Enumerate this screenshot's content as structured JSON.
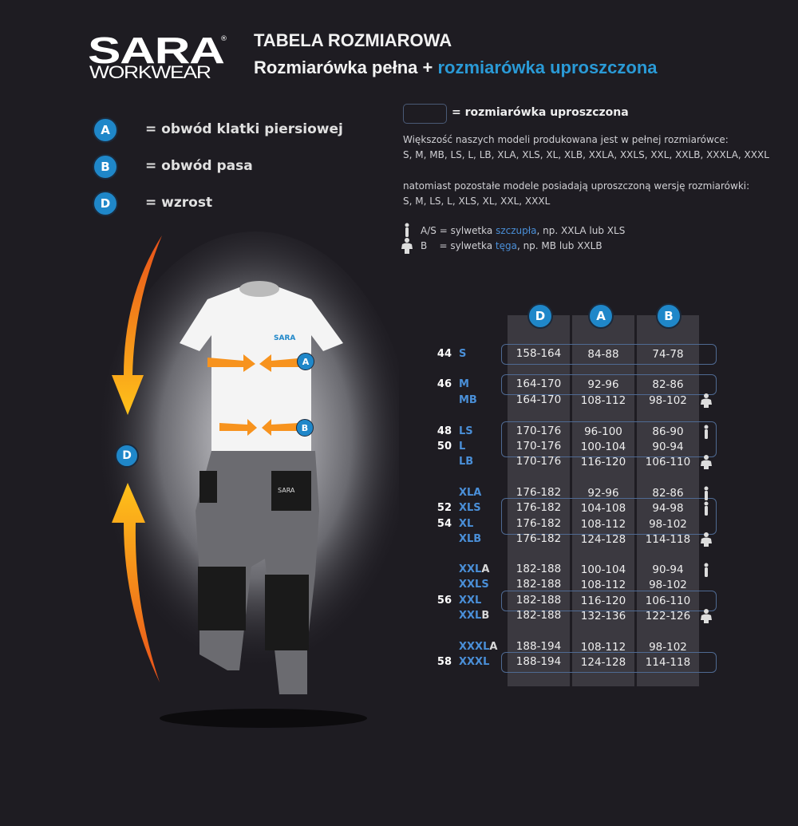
{
  "brand": {
    "logo_line1": "SARA",
    "logo_line2": "WORKWEAR",
    "registered": "®"
  },
  "header": {
    "title": "TABELA ROZMIAROWA",
    "subtitle_part1": "Rozmiarówka pełna + ",
    "subtitle_part2": "rozmiarówka uproszczona"
  },
  "legend": [
    {
      "badge": "A",
      "label": "= obwód klatki piersiowej"
    },
    {
      "badge": "B",
      "label": "= obwód pasa"
    },
    {
      "badge": "D",
      "label": "= wzrost"
    }
  ],
  "info": {
    "simplified_label": "= rozmiarówka uproszczona",
    "full_intro": "Większość naszych modeli produkowana jest w pełnej rozmiarówce:",
    "full_list": "S, M, MB, LS, L, LB, XLA, XLS, XL, XLB, XXLA, XXLS, XXL, XXLB, XXXLA, XXXL",
    "simple_intro": "natomiast pozostałe modele posiadają uproszczoną wersję rozmiarówki:",
    "simple_list": "S, M, LS, L, XLS, XL, XXL, XXXL",
    "slim_code": "A/S",
    "slim_pre": "= sylwetka ",
    "slim_word": "szczupła",
    "slim_post": ", np. XXLA lub XLS",
    "heavy_code": "B",
    "heavy_pre": "= sylwetka ",
    "heavy_word": "tęga",
    "heavy_post": ", np. MB lub XXLB"
  },
  "figure": {
    "badges": [
      "A",
      "B",
      "D"
    ],
    "shirt_logo": "SARA",
    "pants_logo": "SARA"
  },
  "table": {
    "columns": [
      "D",
      "A",
      "B"
    ],
    "rows": [
      {
        "eu": "44",
        "size": "S",
        "suffix": "",
        "D": "158-164",
        "A": "84-88",
        "B": "74-78",
        "build": "",
        "simplified": true
      },
      {
        "eu": "46",
        "size": "M",
        "suffix": "",
        "D": "164-170",
        "A": "92-96",
        "B": "82-86",
        "build": "",
        "simplified": true
      },
      {
        "eu": "",
        "size": "MB",
        "suffix": "",
        "D": "164-170",
        "A": "108-112",
        "B": "98-102",
        "build": "heavy",
        "simplified": false
      },
      {
        "eu": "48",
        "size": "LS",
        "suffix": "",
        "D": "170-176",
        "A": "96-100",
        "B": "86-90",
        "build": "slim",
        "simplified": true
      },
      {
        "eu": "50",
        "size": "L",
        "suffix": "",
        "D": "170-176",
        "A": "100-104",
        "B": "90-94",
        "build": "",
        "simplified": true
      },
      {
        "eu": "",
        "size": "LB",
        "suffix": "",
        "D": "170-176",
        "A": "116-120",
        "B": "106-110",
        "build": "heavy",
        "simplified": false
      },
      {
        "eu": "",
        "size": "XLA",
        "suffix": "",
        "D": "176-182",
        "A": "92-96",
        "B": "82-86",
        "build": "slim",
        "simplified": false
      },
      {
        "eu": "52",
        "size": "XLS",
        "suffix": "",
        "D": "176-182",
        "A": "104-108",
        "B": "94-98",
        "build": "slim",
        "simplified": true
      },
      {
        "eu": "54",
        "size": "XL",
        "suffix": "",
        "D": "176-182",
        "A": "108-112",
        "B": "98-102",
        "build": "",
        "simplified": true
      },
      {
        "eu": "",
        "size": "XLB",
        "suffix": "",
        "D": "176-182",
        "A": "124-128",
        "B": "114-118",
        "build": "heavy",
        "simplified": false
      },
      {
        "eu": "",
        "size": "XXL",
        "suffix": "A",
        "D": "182-188",
        "A": "100-104",
        "B": "90-94",
        "build": "slim",
        "simplified": false
      },
      {
        "eu": "",
        "size": "XXLS",
        "suffix": "",
        "D": "182-188",
        "A": "108-112",
        "B": "98-102",
        "build": "",
        "simplified": false
      },
      {
        "eu": "56",
        "size": "XXL",
        "suffix": "",
        "D": "182-188",
        "A": "116-120",
        "B": "106-110",
        "build": "",
        "simplified": true
      },
      {
        "eu": "",
        "size": "XXL",
        "suffix": "B",
        "D": "182-188",
        "A": "132-136",
        "B": "122-126",
        "build": "heavy",
        "simplified": false
      },
      {
        "eu": "",
        "size": "XXXL",
        "suffix": "A",
        "D": "188-194",
        "A": "108-112",
        "B": "98-102",
        "build": "",
        "simplified": false
      },
      {
        "eu": "58",
        "size": "XXXL",
        "suffix": "",
        "D": "188-194",
        "A": "124-128",
        "B": "114-118",
        "build": "",
        "simplified": true
      }
    ]
  },
  "colors": {
    "background": "#1e1c22",
    "accent_blue": "#1f87c9",
    "size_blue": "#4a8fd8",
    "arrow_orange": "#f7931e",
    "column_bg": "#3b3940"
  }
}
